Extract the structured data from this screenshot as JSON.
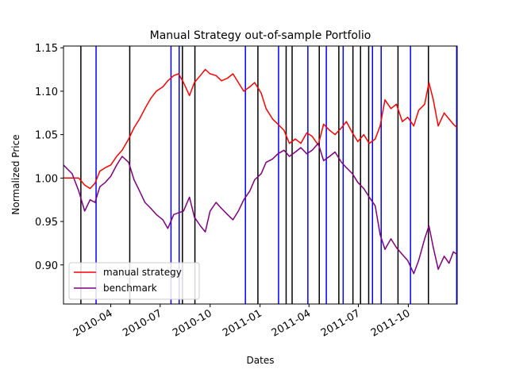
{
  "chart_data": {
    "type": "line",
    "title": "Manual Strategy out-of-sample Portfolio",
    "xlabel": "Dates",
    "ylabel": "Normalized Price",
    "x_range": [
      "2010-01-04",
      "2011-12-30"
    ],
    "ylim": [
      0.855,
      1.152
    ],
    "x_ticks": [
      {
        "date": "2010-04-01",
        "label": "2010-04"
      },
      {
        "date": "2010-07-01",
        "label": "2010-07"
      },
      {
        "date": "2010-10-01",
        "label": "2010-10"
      },
      {
        "date": "2011-01-01",
        "label": "2011-01"
      },
      {
        "date": "2011-04-01",
        "label": "2011-04"
      },
      {
        "date": "2011-07-01",
        "label": "2011-07"
      },
      {
        "date": "2011-10-01",
        "label": "2011-10"
      }
    ],
    "y_ticks": [
      {
        "value": 0.9,
        "label": "0.90"
      },
      {
        "value": 0.95,
        "label": "0.95"
      },
      {
        "value": 1.0,
        "label": "1.00"
      },
      {
        "value": 1.05,
        "label": "1.05"
      },
      {
        "value": 1.1,
        "label": "1.10"
      },
      {
        "value": 1.15,
        "label": "1.15"
      }
    ],
    "grid": false,
    "legend": {
      "position": "lower left"
    },
    "series": [
      {
        "name": "manual strategy",
        "color": "#ff0000",
        "points": [
          [
            "2010-01-04",
            1.0
          ],
          [
            "2010-01-20",
            1.0
          ],
          [
            "2010-02-01",
            1.0
          ],
          [
            "2010-02-12",
            0.992
          ],
          [
            "2010-02-22",
            0.988
          ],
          [
            "2010-03-03",
            0.994
          ],
          [
            "2010-03-12",
            1.008
          ],
          [
            "2010-03-22",
            1.012
          ],
          [
            "2010-04-01",
            1.015
          ],
          [
            "2010-04-12",
            1.025
          ],
          [
            "2010-04-22",
            1.032
          ],
          [
            "2010-05-04",
            1.045
          ],
          [
            "2010-05-14",
            1.058
          ],
          [
            "2010-05-24",
            1.068
          ],
          [
            "2010-06-03",
            1.08
          ],
          [
            "2010-06-14",
            1.092
          ],
          [
            "2010-06-24",
            1.1
          ],
          [
            "2010-07-06",
            1.105
          ],
          [
            "2010-07-15",
            1.112
          ],
          [
            "2010-07-26",
            1.118
          ],
          [
            "2010-08-04",
            1.12
          ],
          [
            "2010-08-13",
            1.11
          ],
          [
            "2010-08-24",
            1.095
          ],
          [
            "2010-09-02",
            1.11
          ],
          [
            "2010-09-13",
            1.118
          ],
          [
            "2010-09-22",
            1.125
          ],
          [
            "2010-10-01",
            1.12
          ],
          [
            "2010-10-12",
            1.118
          ],
          [
            "2010-10-22",
            1.112
          ],
          [
            "2010-11-02",
            1.115
          ],
          [
            "2010-11-12",
            1.12
          ],
          [
            "2010-11-22",
            1.11
          ],
          [
            "2010-12-02",
            1.1
          ],
          [
            "2010-12-13",
            1.105
          ],
          [
            "2010-12-22",
            1.11
          ],
          [
            "2011-01-03",
            1.098
          ],
          [
            "2011-01-12",
            1.08
          ],
          [
            "2011-01-24",
            1.068
          ],
          [
            "2011-02-03",
            1.062
          ],
          [
            "2011-02-14",
            1.055
          ],
          [
            "2011-02-24",
            1.04
          ],
          [
            "2011-03-07",
            1.045
          ],
          [
            "2011-03-17",
            1.04
          ],
          [
            "2011-03-28",
            1.052
          ],
          [
            "2011-04-07",
            1.048
          ],
          [
            "2011-04-18",
            1.038
          ],
          [
            "2011-04-28",
            1.062
          ],
          [
            "2011-05-09",
            1.055
          ],
          [
            "2011-05-19",
            1.05
          ],
          [
            "2011-05-31",
            1.058
          ],
          [
            "2011-06-09",
            1.065
          ],
          [
            "2011-06-20",
            1.052
          ],
          [
            "2011-06-30",
            1.042
          ],
          [
            "2011-07-11",
            1.05
          ],
          [
            "2011-07-21",
            1.04
          ],
          [
            "2011-08-01",
            1.045
          ],
          [
            "2011-08-10",
            1.06
          ],
          [
            "2011-08-19",
            1.09
          ],
          [
            "2011-08-30",
            1.08
          ],
          [
            "2011-09-09",
            1.085
          ],
          [
            "2011-09-20",
            1.065
          ],
          [
            "2011-09-30",
            1.07
          ],
          [
            "2011-10-11",
            1.06
          ],
          [
            "2011-10-20",
            1.078
          ],
          [
            "2011-10-31",
            1.085
          ],
          [
            "2011-11-08",
            1.11
          ],
          [
            "2011-11-16",
            1.09
          ],
          [
            "2011-11-25",
            1.06
          ],
          [
            "2011-12-06",
            1.075
          ],
          [
            "2011-12-15",
            1.068
          ],
          [
            "2011-12-23",
            1.062
          ],
          [
            "2011-12-30",
            1.058
          ]
        ]
      },
      {
        "name": "benchmark",
        "color": "#800080",
        "points": [
          [
            "2010-01-04",
            1.015
          ],
          [
            "2010-01-20",
            1.005
          ],
          [
            "2010-02-01",
            0.985
          ],
          [
            "2010-02-12",
            0.962
          ],
          [
            "2010-02-22",
            0.975
          ],
          [
            "2010-03-03",
            0.972
          ],
          [
            "2010-03-12",
            0.99
          ],
          [
            "2010-03-22",
            0.995
          ],
          [
            "2010-04-01",
            1.002
          ],
          [
            "2010-04-12",
            1.015
          ],
          [
            "2010-04-22",
            1.025
          ],
          [
            "2010-05-04",
            1.018
          ],
          [
            "2010-05-14",
            0.998
          ],
          [
            "2010-05-24",
            0.985
          ],
          [
            "2010-06-03",
            0.972
          ],
          [
            "2010-06-14",
            0.965
          ],
          [
            "2010-06-24",
            0.958
          ],
          [
            "2010-07-06",
            0.952
          ],
          [
            "2010-07-15",
            0.942
          ],
          [
            "2010-07-26",
            0.958
          ],
          [
            "2010-08-04",
            0.96
          ],
          [
            "2010-08-13",
            0.962
          ],
          [
            "2010-08-24",
            0.978
          ],
          [
            "2010-09-02",
            0.955
          ],
          [
            "2010-09-13",
            0.945
          ],
          [
            "2010-09-22",
            0.938
          ],
          [
            "2010-10-01",
            0.962
          ],
          [
            "2010-10-12",
            0.972
          ],
          [
            "2010-10-22",
            0.965
          ],
          [
            "2010-11-02",
            0.958
          ],
          [
            "2010-11-12",
            0.952
          ],
          [
            "2010-11-22",
            0.962
          ],
          [
            "2010-12-02",
            0.975
          ],
          [
            "2010-12-13",
            0.985
          ],
          [
            "2010-12-22",
            0.998
          ],
          [
            "2011-01-03",
            1.005
          ],
          [
            "2011-01-12",
            1.018
          ],
          [
            "2011-01-24",
            1.022
          ],
          [
            "2011-02-03",
            1.028
          ],
          [
            "2011-02-14",
            1.032
          ],
          [
            "2011-02-24",
            1.025
          ],
          [
            "2011-03-07",
            1.03
          ],
          [
            "2011-03-17",
            1.035
          ],
          [
            "2011-03-28",
            1.028
          ],
          [
            "2011-04-07",
            1.032
          ],
          [
            "2011-04-18",
            1.04
          ],
          [
            "2011-04-28",
            1.02
          ],
          [
            "2011-05-09",
            1.025
          ],
          [
            "2011-05-19",
            1.03
          ],
          [
            "2011-05-31",
            1.018
          ],
          [
            "2011-06-09",
            1.012
          ],
          [
            "2011-06-20",
            1.005
          ],
          [
            "2011-06-30",
            0.995
          ],
          [
            "2011-07-11",
            0.988
          ],
          [
            "2011-07-21",
            0.978
          ],
          [
            "2011-08-01",
            0.968
          ],
          [
            "2011-08-10",
            0.935
          ],
          [
            "2011-08-19",
            0.918
          ],
          [
            "2011-08-30",
            0.93
          ],
          [
            "2011-09-09",
            0.92
          ],
          [
            "2011-09-20",
            0.912
          ],
          [
            "2011-09-30",
            0.905
          ],
          [
            "2011-10-11",
            0.89
          ],
          [
            "2011-10-20",
            0.905
          ],
          [
            "2011-10-31",
            0.93
          ],
          [
            "2011-11-08",
            0.945
          ],
          [
            "2011-11-16",
            0.92
          ],
          [
            "2011-11-25",
            0.895
          ],
          [
            "2011-12-06",
            0.91
          ],
          [
            "2011-12-15",
            0.902
          ],
          [
            "2011-12-23",
            0.915
          ],
          [
            "2011-12-30",
            0.912
          ]
        ]
      }
    ],
    "vertical_lines": {
      "black": {
        "color": "#000000",
        "dates": [
          "2010-02-05",
          "2010-05-06",
          "2010-08-11",
          "2010-09-03",
          "2010-12-28",
          "2011-02-18",
          "2011-03-01",
          "2011-04-20",
          "2011-05-26",
          "2011-06-21",
          "2011-07-05",
          "2011-07-20",
          "2011-09-12",
          "2011-11-07"
        ]
      },
      "blue": {
        "color": "#0000ff",
        "dates": [
          "2010-03-05",
          "2010-07-21",
          "2010-08-05",
          "2010-12-05",
          "2011-02-04",
          "2011-03-30",
          "2011-05-03",
          "2011-06-03",
          "2011-07-27",
          "2011-08-12",
          "2011-10-05",
          "2011-12-29"
        ]
      }
    }
  }
}
